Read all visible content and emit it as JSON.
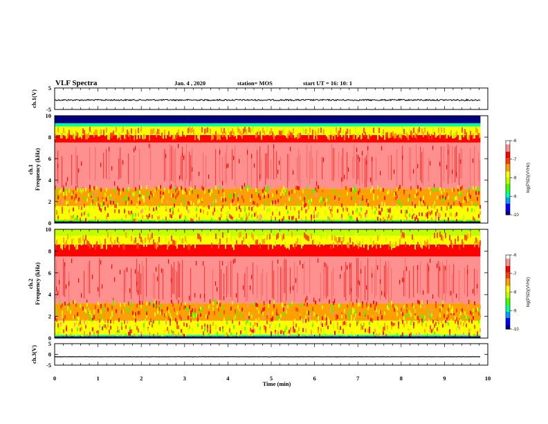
{
  "header": {
    "title": "VLF Spectra",
    "date": "Jan. 4 , 2020",
    "station": "station= MOS",
    "start": "start  UT =   16: 10: 1"
  },
  "colors": {
    "scale": [
      "#000080",
      "#0000ff",
      "#00a0ff",
      "#00ffa0",
      "#40ff00",
      "#c0ff00",
      "#ffff00",
      "#ffa000",
      "#ff4000",
      "#ff0000",
      "#ff9090",
      "#ffffff"
    ],
    "trace": "#000000"
  },
  "chart_data": [
    {
      "type": "line",
      "name": "ch1-waveform",
      "ylabel": "ch.1(V)",
      "ylim": [
        -5,
        5
      ],
      "yticks": [
        "5",
        "-5"
      ],
      "xlim": [
        0,
        10
      ],
      "description_level": -0.6
    },
    {
      "type": "heatmap",
      "name": "ch1-spectrogram",
      "ylabel_line1": "ch.1",
      "ylabel_line2": "Frequency  (kHz)",
      "ylim": [
        0,
        10
      ],
      "yticks": [
        "0",
        "2",
        "4",
        "6",
        "8",
        "10"
      ],
      "xlim": [
        0,
        9.83
      ],
      "bands": [
        {
          "from": 0.0,
          "to": 0.3,
          "level": 0.35
        },
        {
          "from": 0.3,
          "to": 1.6,
          "level": 0.55
        },
        {
          "from": 1.6,
          "to": 3.2,
          "level": 0.65
        },
        {
          "from": 3.2,
          "to": 7.5,
          "level": 0.92
        },
        {
          "from": 7.5,
          "to": 8.2,
          "level": 0.85
        },
        {
          "from": 8.2,
          "to": 9.0,
          "level": 0.55
        },
        {
          "from": 9.0,
          "to": 9.3,
          "level": 0.3
        },
        {
          "from": 9.3,
          "to": 10.0,
          "level": 0.0
        }
      ],
      "colorbar": {
        "label": "log(PSD)(V²/Hz)",
        "ticks": [
          "-6",
          "-7",
          "-8",
          "-9",
          "-10"
        ]
      }
    },
    {
      "type": "heatmap",
      "name": "ch2-spectrogram",
      "ylabel_line1": "ch.2",
      "ylabel_line2": "Frequency  (kHz)",
      "ylim": [
        0,
        10
      ],
      "yticks": [
        "0",
        "2",
        "4",
        "6",
        "8",
        "10"
      ],
      "xlim": [
        0,
        9.83
      ],
      "bands": [
        {
          "from": 0.0,
          "to": 0.3,
          "level": 0.3
        },
        {
          "from": 0.3,
          "to": 1.6,
          "level": 0.5
        },
        {
          "from": 1.6,
          "to": 3.2,
          "level": 0.62
        },
        {
          "from": 3.2,
          "to": 7.5,
          "level": 0.92
        },
        {
          "from": 7.5,
          "to": 8.6,
          "level": 0.82
        },
        {
          "from": 8.6,
          "to": 9.4,
          "level": 0.55
        },
        {
          "from": 9.4,
          "to": 10.0,
          "level": 0.45
        }
      ],
      "colorbar": {
        "label": "log(PSD)(V²/Hz)",
        "ticks": [
          "-6",
          "-7",
          "-8",
          "-9",
          "-10"
        ]
      }
    },
    {
      "type": "line",
      "name": "ch3-waveform",
      "ylabel": "ch.3(V)",
      "ylim": [
        -5,
        5
      ],
      "yticks": [
        "5",
        "0",
        "-5"
      ],
      "xlim": [
        0,
        10
      ],
      "description_level": -1.1
    }
  ],
  "xaxis": {
    "label": "Time  (min)",
    "ticks": [
      "0",
      "1",
      "2",
      "3",
      "4",
      "5",
      "6",
      "7",
      "8",
      "9",
      "10"
    ]
  }
}
